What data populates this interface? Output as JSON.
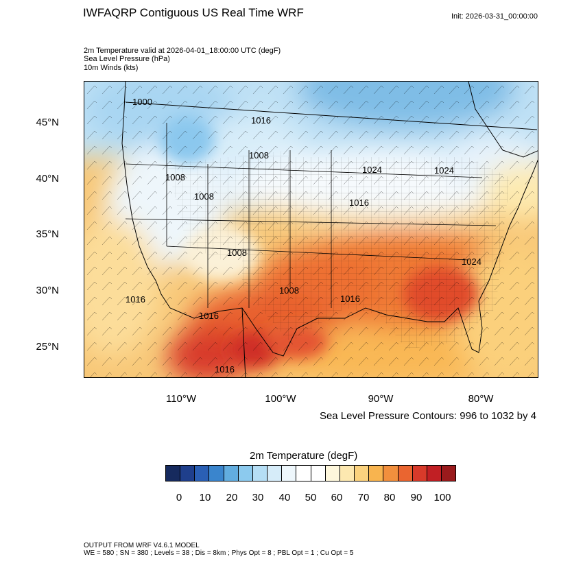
{
  "title": "IWFAQRP Contiguous US Real Time WRF",
  "init_time": "Init: 2026-03-31_00:00:00",
  "fields": [
    "2m Temperature valid at 2026-04-01_18:00:00 UTC   (degF)",
    "Sea Level Pressure   (hPa)",
    "10m Winds   (kts)"
  ],
  "map": {
    "lat_ticks": [
      "45°N",
      "40°N",
      "35°N",
      "30°N",
      "25°N"
    ],
    "lon_ticks": [
      "110°W",
      "100°W",
      "90°W",
      "80°W"
    ],
    "slp_labels": [
      "1000",
      "1016",
      "1008",
      "1008",
      "1008",
      "1024",
      "1024",
      "1016",
      "1008",
      "1024",
      "1016",
      "1008",
      "1016",
      "1016",
      "1016"
    ],
    "contour_info": "Sea Level Pressure Contours: 996 to 1032 by 4"
  },
  "colorbar": {
    "title": "2m Temperature  (degF)",
    "labels": [
      "0",
      "10",
      "20",
      "30",
      "40",
      "50",
      "60",
      "70",
      "80",
      "90",
      "100"
    ],
    "colors": [
      "#162a5e",
      "#1f3f8c",
      "#2a5fb4",
      "#3a85cd",
      "#62addf",
      "#8ccaee",
      "#b5def5",
      "#d6ecf9",
      "#eef7fc",
      "#ffffff",
      "#ffffff",
      "#fef7dc",
      "#fde8b0",
      "#fbd27e",
      "#f8b44f",
      "#f28f3d",
      "#ea6530",
      "#d83a2a",
      "#c11f24",
      "#9a1a1c"
    ]
  },
  "footer": {
    "line1": "OUTPUT FROM WRF V4.6.1 MODEL",
    "line2": "WE = 580 ; SN = 380 ; Levels = 38 ; Dis = 8km ; Phys Opt = 8 ; PBL Opt = 1 ; Cu Opt = 5"
  }
}
